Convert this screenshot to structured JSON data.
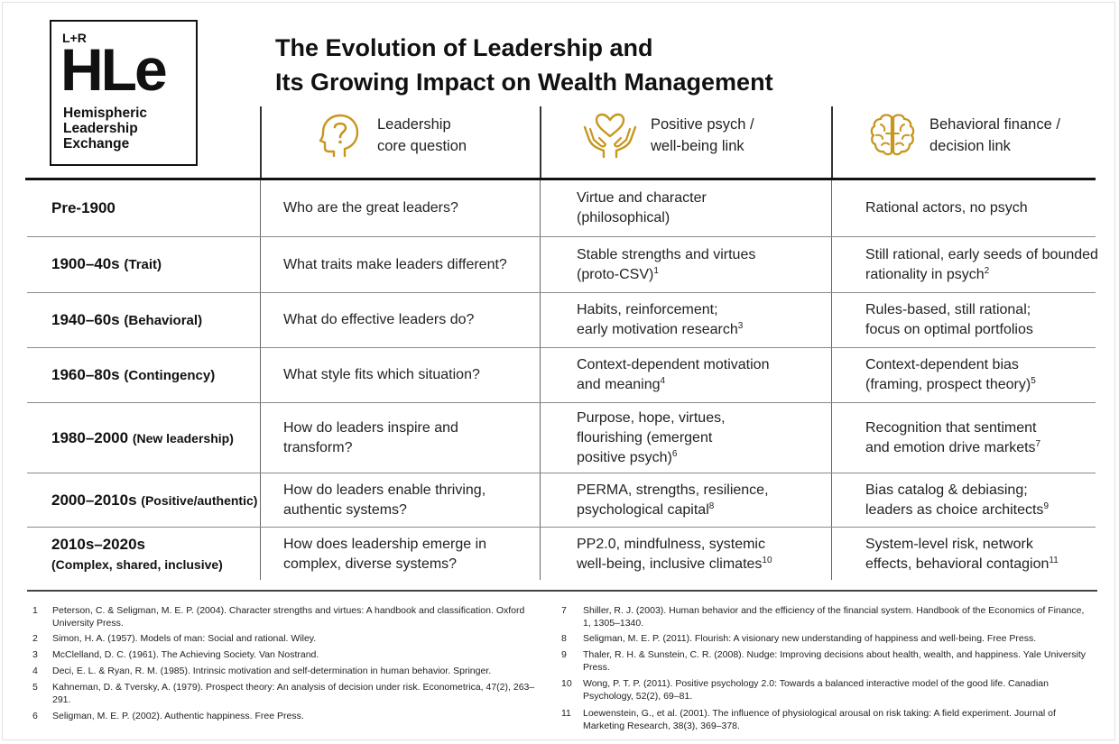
{
  "logo": {
    "lr": "L+R",
    "mark": "HLe",
    "org_lines": [
      "Hemispheric",
      "Leadership",
      "Exchange"
    ]
  },
  "title_lines": [
    "The Evolution of Leadership and",
    "Its Growing Impact on Wealth Management"
  ],
  "columns": [
    {
      "icon": "question-head-icon",
      "lines": [
        "Leadership",
        "core question"
      ]
    },
    {
      "icon": "heart-hands-icon",
      "lines": [
        "Positive psych /",
        "well-being link"
      ]
    },
    {
      "icon": "brain-icon",
      "lines": [
        "Behavioral finance /",
        "decision link"
      ]
    }
  ],
  "accent_color": "#c8961e",
  "rows": [
    {
      "period": "Pre-1900",
      "period_sub": "",
      "period_sub2": "",
      "question": [
        "Who are the great leaders?"
      ],
      "psych": [
        {
          "t": "Virtue and character",
          "s": ""
        },
        {
          "t": "(philosophical)",
          "s": ""
        }
      ],
      "finance": [
        {
          "t": "Rational actors, no psych",
          "s": ""
        }
      ]
    },
    {
      "period": "1900–40s",
      "period_sub": "(Trait)",
      "period_sub2": "",
      "question": [
        "What traits make leaders different?"
      ],
      "psych": [
        {
          "t": "Stable strengths and virtues",
          "s": ""
        },
        {
          "t": "(proto-CSV)",
          "s": "1"
        }
      ],
      "finance": [
        {
          "t": "Still rational, early seeds of bounded",
          "s": ""
        },
        {
          "t": "rationality in psych",
          "s": "2"
        }
      ]
    },
    {
      "period": "1940–60s",
      "period_sub": "(Behavioral)",
      "period_sub2": "",
      "question": [
        "What do effective leaders do?"
      ],
      "psych": [
        {
          "t": "Habits, reinforcement;",
          "s": ""
        },
        {
          "t": "early motivation research",
          "s": "3"
        }
      ],
      "finance": [
        {
          "t": "Rules-based, still rational;",
          "s": ""
        },
        {
          "t": "focus on optimal portfolios",
          "s": ""
        }
      ]
    },
    {
      "period": "1960–80s",
      "period_sub": "(Contingency)",
      "period_sub2": "",
      "question": [
        "What style fits which situation?"
      ],
      "psych": [
        {
          "t": "Context-dependent motivation",
          "s": ""
        },
        {
          "t": "and meaning",
          "s": "4"
        }
      ],
      "finance": [
        {
          "t": "Context-dependent bias",
          "s": ""
        },
        {
          "t": "(framing, prospect theory)",
          "s": "5"
        }
      ]
    },
    {
      "period": "1980–2000",
      "period_sub": "(New leadership)",
      "period_sub2": "",
      "question": [
        "How do leaders inspire and",
        "transform?"
      ],
      "psych": [
        {
          "t": "Purpose, hope, virtues,",
          "s": ""
        },
        {
          "t": "flourishing (emergent",
          "s": ""
        },
        {
          "t": "positive psych)",
          "s": "6"
        }
      ],
      "finance": [
        {
          "t": "Recognition that sentiment",
          "s": ""
        },
        {
          "t": "and emotion drive markets",
          "s": "7"
        }
      ]
    },
    {
      "period": "2000–2010s",
      "period_sub": "(Positive/authentic)",
      "period_sub2": "",
      "question": [
        "How do leaders enable thriving,",
        "authentic systems?"
      ],
      "psych": [
        {
          "t": "PERMA, strengths, resilience,",
          "s": ""
        },
        {
          "t": "psychological capital",
          "s": "8"
        }
      ],
      "finance": [
        {
          "t": "Bias catalog & debiasing;",
          "s": ""
        },
        {
          "t": "leaders as choice architects",
          "s": "9"
        }
      ]
    },
    {
      "period": "2010s–2020s",
      "period_sub": "",
      "period_sub2": "(Complex, shared, inclusive)",
      "question": [
        "How does leadership emerge in",
        "complex, diverse systems?"
      ],
      "psych": [
        {
          "t": "PP2.0, mindfulness, systemic",
          "s": ""
        },
        {
          "t": "well-being, inclusive climates",
          "s": "10"
        }
      ],
      "finance": [
        {
          "t": "System-level risk, network",
          "s": ""
        },
        {
          "t": "effects, behavioral contagion",
          "s": "11"
        }
      ]
    }
  ],
  "footnotes_left": [
    {
      "n": "1",
      "text": "Peterson, C. & Seligman, M. E. P. (2004). Character strengths and virtues: A handbook and classification. Oxford University Press."
    },
    {
      "n": "2",
      "text": "Simon, H. A. (1957). Models of man: Social and rational. Wiley."
    },
    {
      "n": "3",
      "text": "McClelland, D. C. (1961). The Achieving Society. Van Nostrand."
    },
    {
      "n": "4",
      "text": "Deci, E. L. & Ryan, R. M. (1985). Intrinsic motivation and self-determination in human behavior. Springer."
    },
    {
      "n": "5",
      "text": "Kahneman, D. & Tversky, A. (1979). Prospect theory: An analysis of decision under risk. Econometrica, 47(2), 263–291."
    },
    {
      "n": "6",
      "text": "Seligman, M. E. P. (2002). Authentic happiness. Free Press."
    }
  ],
  "footnotes_right": [
    {
      "n": "7",
      "text": "Shiller, R. J. (2003). Human behavior and the efficiency of the financial system. Handbook of the Economics of Finance, 1, 1305–1340."
    },
    {
      "n": "8",
      "text": "Seligman, M. E. P. (2011). Flourish: A visionary new understanding of happiness and well-being. Free Press."
    },
    {
      "n": "9",
      "text": "Thaler, R. H. & Sunstein, C. R. (2008). Nudge: Improving decisions about health, wealth, and happiness. Yale University Press."
    },
    {
      "n": "10",
      "text": "Wong, P. T. P. (2011). Positive psychology 2.0: Towards a balanced interactive model of the good life. Canadian Psychology, 52(2), 69–81."
    },
    {
      "n": "11",
      "text": "Loewenstein, G., et al. (2001). The influence of physiological arousal on risk taking: A field experiment. Journal of Marketing Research, 38(3), 369–378."
    }
  ]
}
